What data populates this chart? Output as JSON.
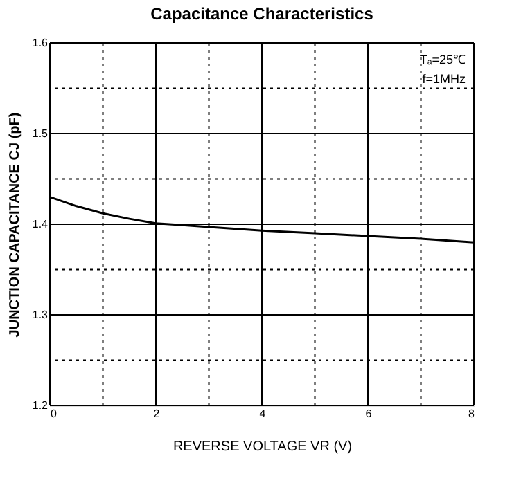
{
  "chart_data": {
    "type": "line",
    "title": "Capacitance Characteristics",
    "xlabel": "REVERSE VOLTAGE VR (V)",
    "ylabel": "JUNCTION CAPACITANCE CJ (pF)",
    "x": [
      0,
      0.5,
      1,
      1.5,
      2,
      2.5,
      3,
      4,
      5,
      6,
      7,
      8
    ],
    "series": [
      {
        "color": "#000000",
        "values": [
          1.43,
          1.42,
          1.412,
          1.406,
          1.401,
          1.399,
          1.397,
          1.393,
          1.39,
          1.387,
          1.384,
          1.38
        ]
      }
    ],
    "xlim": [
      0,
      8
    ],
    "ylim": [
      1.2,
      1.6
    ],
    "xticks": [
      0,
      {
        "value": 1,
        "label": null
      },
      2,
      {
        "value": 3,
        "label": null
      },
      4,
      {
        "value": 5,
        "label": null
      },
      6,
      {
        "value": 7,
        "label": null
      },
      8
    ],
    "yticks": [
      1.2,
      {
        "value": 1.25,
        "label": null
      },
      1.3,
      {
        "value": 1.35,
        "label": null
      },
      1.4,
      {
        "value": 1.45,
        "label": null
      },
      1.5,
      {
        "value": 1.55,
        "label": null
      },
      1.6
    ],
    "grid": true,
    "marker": "none",
    "line_style": "solid",
    "annotations": [
      "Tₐ=25℃",
      "f=1MHz"
    ]
  }
}
